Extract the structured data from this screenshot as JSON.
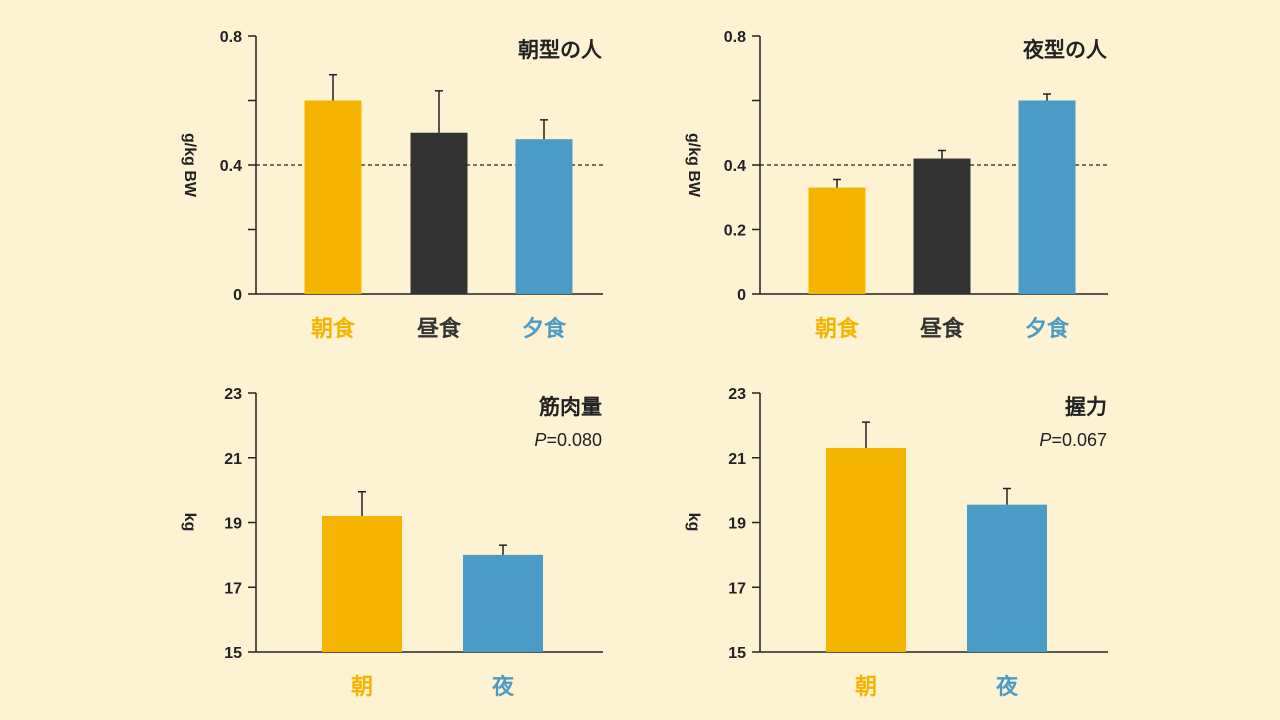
{
  "colors": {
    "background": "#fdf3d2",
    "morning": "#f5b400",
    "lunch": "#333333",
    "evening": "#4a9bc5",
    "axis": "#222222"
  },
  "chart_data": [
    {
      "type": "bar",
      "title": "朝型の人",
      "ylabel": "g/kg BW",
      "ylim": [
        0,
        0.8
      ],
      "yticks": [
        "0",
        "0.4",
        "0.8"
      ],
      "categories": [
        "朝食",
        "昼食",
        "夕食"
      ],
      "category_colors": [
        "#f5b400",
        "#333333",
        "#4a9bc5"
      ],
      "values": [
        0.6,
        0.5,
        0.48
      ],
      "errors": [
        0.08,
        0.13,
        0.06
      ],
      "reference_line": 0.4
    },
    {
      "type": "bar",
      "title": "夜型の人",
      "ylabel": "g/kg BW",
      "ylim": [
        0,
        0.8
      ],
      "yticks": [
        "0",
        "0.2",
        "0.4",
        "0.8"
      ],
      "categories": [
        "朝食",
        "昼食",
        "夕食"
      ],
      "category_colors": [
        "#f5b400",
        "#333333",
        "#4a9bc5"
      ],
      "values": [
        0.33,
        0.42,
        0.6
      ],
      "errors": [
        0.025,
        0.025,
        0.02
      ],
      "reference_line": 0.4
    },
    {
      "type": "bar",
      "title": "筋肉量",
      "pvalue": {
        "label": "P",
        "value": "=0.080"
      },
      "ylabel": "kg",
      "ylim": [
        15,
        23
      ],
      "yticks": [
        "15",
        "17",
        "19",
        "21",
        "23"
      ],
      "categories": [
        "朝",
        "夜"
      ],
      "category_colors": [
        "#f5b400",
        "#4a9bc5"
      ],
      "values": [
        19.2,
        18.0
      ],
      "errors": [
        0.75,
        0.3
      ]
    },
    {
      "type": "bar",
      "title": "握力",
      "pvalue": {
        "label": "P",
        "value": "=0.067"
      },
      "ylabel": "kg",
      "ylim": [
        15,
        23
      ],
      "yticks": [
        "15",
        "17",
        "19",
        "21",
        "23"
      ],
      "categories": [
        "朝",
        "夜"
      ],
      "category_colors": [
        "#f5b400",
        "#4a9bc5"
      ],
      "values": [
        21.3,
        19.55
      ],
      "errors": [
        0.8,
        0.5
      ]
    }
  ]
}
